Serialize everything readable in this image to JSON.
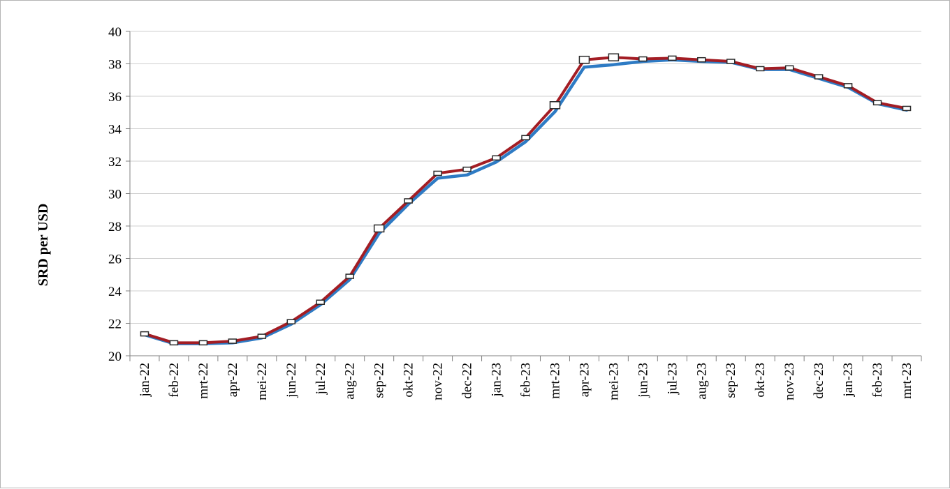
{
  "chart_data": {
    "type": "line",
    "title": "",
    "xlabel": "",
    "ylabel": "SRD per USD",
    "ylim": [
      20,
      40
    ],
    "yticks": [
      20,
      22,
      24,
      26,
      28,
      30,
      32,
      34,
      36,
      38,
      40
    ],
    "grid": true,
    "categories": [
      "jan-22",
      "feb-22",
      "mrt-22",
      "apr-22",
      "mei-22",
      "jun-22",
      "jul-22",
      "aug-22",
      "sep-22",
      "okt-22",
      "nov-22",
      "dec-22",
      "jan-23",
      "feb-23",
      "mrt-23",
      "apr-23",
      "mei-23",
      "jun-23",
      "jul-23",
      "aug-23",
      "sep-23",
      "okt-23",
      "nov-23",
      "dec-23",
      "jan-23",
      "feb-23",
      "mrt-23"
    ],
    "series": [
      {
        "color": "#2e7bc4",
        "values": [
          21.3,
          20.75,
          20.75,
          20.8,
          21.1,
          21.95,
          23.15,
          24.7,
          27.55,
          29.35,
          30.95,
          31.15,
          31.95,
          33.2,
          35.05,
          37.8,
          37.95,
          38.15,
          38.25,
          38.15,
          38.1,
          37.65,
          37.65,
          37.1,
          36.55,
          35.55,
          35.15
        ]
      },
      {
        "color": "#a31d24",
        "values": [
          21.35,
          20.8,
          20.8,
          20.9,
          21.2,
          22.1,
          23.3,
          24.9,
          27.85,
          29.55,
          31.25,
          31.5,
          32.2,
          33.45,
          35.45,
          38.25,
          38.4,
          38.3,
          38.35,
          38.25,
          38.15,
          37.7,
          37.75,
          37.2,
          36.65,
          35.6,
          35.25
        ]
      }
    ],
    "marker_series_index": 1
  }
}
